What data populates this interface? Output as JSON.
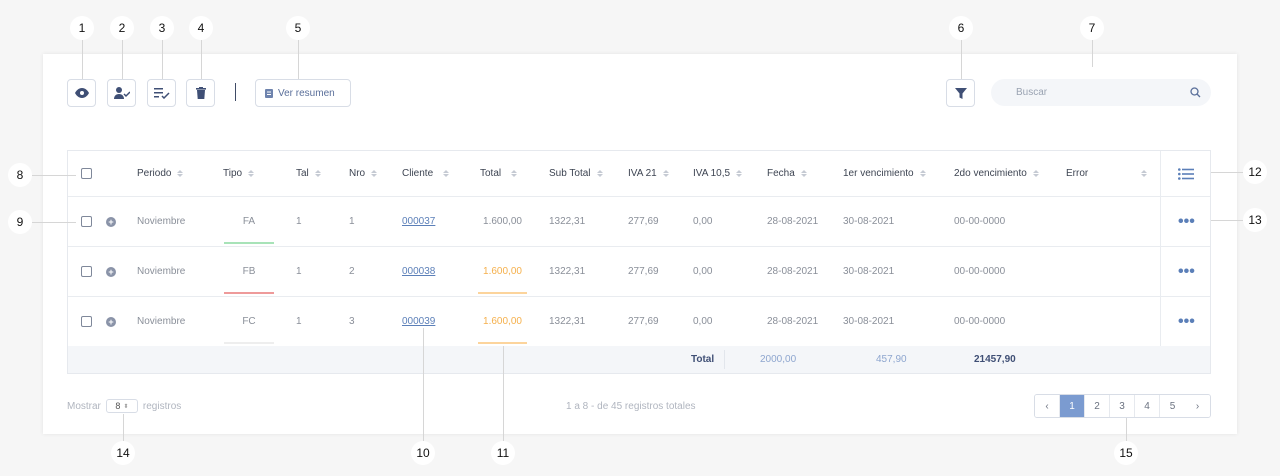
{
  "toolbar": {
    "ver_resumen": "Ver resumen"
  },
  "search": {
    "placeholder": "Buscar"
  },
  "columns": [
    "Periodo",
    "Tipo",
    "Tal",
    "Nro",
    "Cliente",
    "Total",
    "Sub Total",
    "IVA 21",
    "IVA 10,5",
    "Fecha",
    "1er vencimiento",
    "2do vencimiento",
    "Error"
  ],
  "rows": [
    {
      "periodo": "Noviembre",
      "tipo": "FA",
      "tipo_color": "#a8e3b8",
      "tal": "1",
      "nro": "1",
      "cliente": "000037",
      "total": "1.600,00",
      "total_highlight": false,
      "sub_total": "1322,31",
      "iva21": "277,69",
      "iva105": "0,00",
      "fecha": "28-08-2021",
      "venc1": "30-08-2021",
      "venc2": "00-00-0000",
      "error": ""
    },
    {
      "periodo": "Noviembre",
      "tipo": "FB",
      "tipo_color": "#ee9a9a",
      "tal": "1",
      "nro": "2",
      "cliente": "000038",
      "total": "1.600,00",
      "total_highlight": true,
      "sub_total": "1322,31",
      "iva21": "277,69",
      "iva105": "0,00",
      "fecha": "28-08-2021",
      "venc1": "30-08-2021",
      "venc2": "00-00-0000",
      "error": ""
    },
    {
      "periodo": "Noviembre",
      "tipo": "FC",
      "tipo_color": "#eeeeee",
      "tal": "1",
      "nro": "3",
      "cliente": "000039",
      "total": "1.600,00",
      "total_highlight": true,
      "sub_total": "1322,31",
      "iva21": "277,69",
      "iva105": "0,00",
      "fecha": "28-08-2021",
      "venc1": "30-08-2021",
      "venc2": "00-00-0000",
      "error": ""
    }
  ],
  "totals": {
    "label": "Total",
    "v1": "2000,00",
    "v2": "457,90",
    "v3": "21457,90"
  },
  "footer": {
    "mostrar": "Mostrar",
    "per_page": "8",
    "registros": "registros",
    "summary": "1 a 8 - de 45 registros totales"
  },
  "pagination": {
    "pages": [
      "1",
      "2",
      "3",
      "4",
      "5"
    ],
    "active": "1"
  },
  "callouts": [
    "1",
    "2",
    "3",
    "4",
    "5",
    "6",
    "7",
    "8",
    "9",
    "10",
    "11",
    "12",
    "13",
    "14",
    "15"
  ],
  "colors": {
    "accent": "#5b7fb8",
    "orange": "#f5b04c",
    "active_page": "#7b9bd0"
  }
}
